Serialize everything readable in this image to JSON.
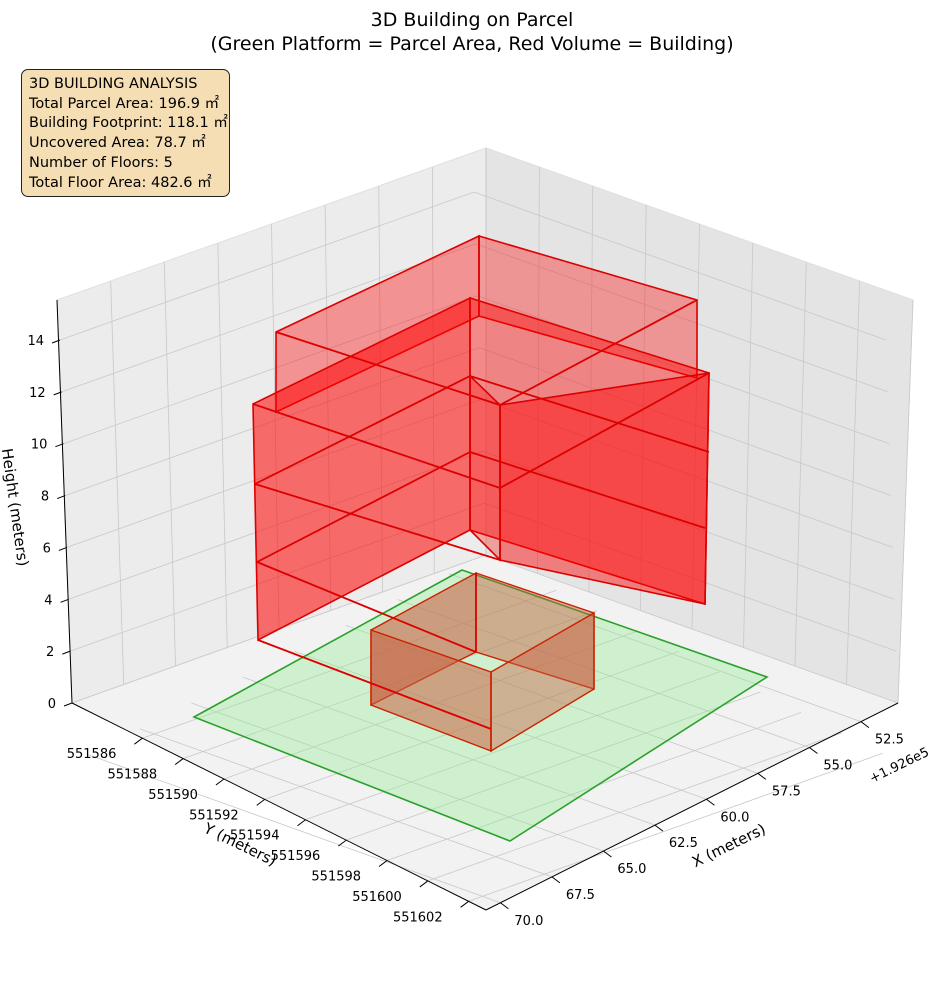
{
  "chart_data": {
    "type": "3d-polygons",
    "title": "3D Building on Parcel",
    "subtitle": "(Green Platform = Parcel Area, Red Volume = Building)",
    "xlabel": "X (meters)",
    "ylabel": "Y (meters)",
    "zlabel": "Height (meters)",
    "x_offset_label": "+1.926e5",
    "x_ticks": [
      "52.5",
      "55.0",
      "57.5",
      "60.0",
      "62.5",
      "65.0",
      "67.5",
      "70.0"
    ],
    "y_ticks": [
      "551586",
      "551588",
      "551590",
      "551592",
      "551594",
      "551596",
      "551598",
      "551600",
      "551602"
    ],
    "z_ticks": [
      "0",
      "2",
      "4",
      "6",
      "8",
      "10",
      "12",
      "14"
    ],
    "parcel_label": "Green Platform = Parcel Area",
    "building_label": "Red Volume = Building",
    "colors": {
      "parcel_fill": "#90ee90",
      "parcel_edge": "#2ca02c",
      "building_fill": "#ff0000",
      "building_edge": "#dd0000"
    },
    "grid": true
  },
  "info_box": {
    "line1": "3D BUILDING ANALYSIS",
    "line2": "Total Parcel Area: 196.9 ㎡",
    "line3": "Building Footprint: 118.1 ㎡",
    "line4": "Uncovered Area: 78.7 ㎡",
    "line5": "Number of Floors: 5",
    "line6": "Total Floor Area: 482.6 ㎡"
  }
}
